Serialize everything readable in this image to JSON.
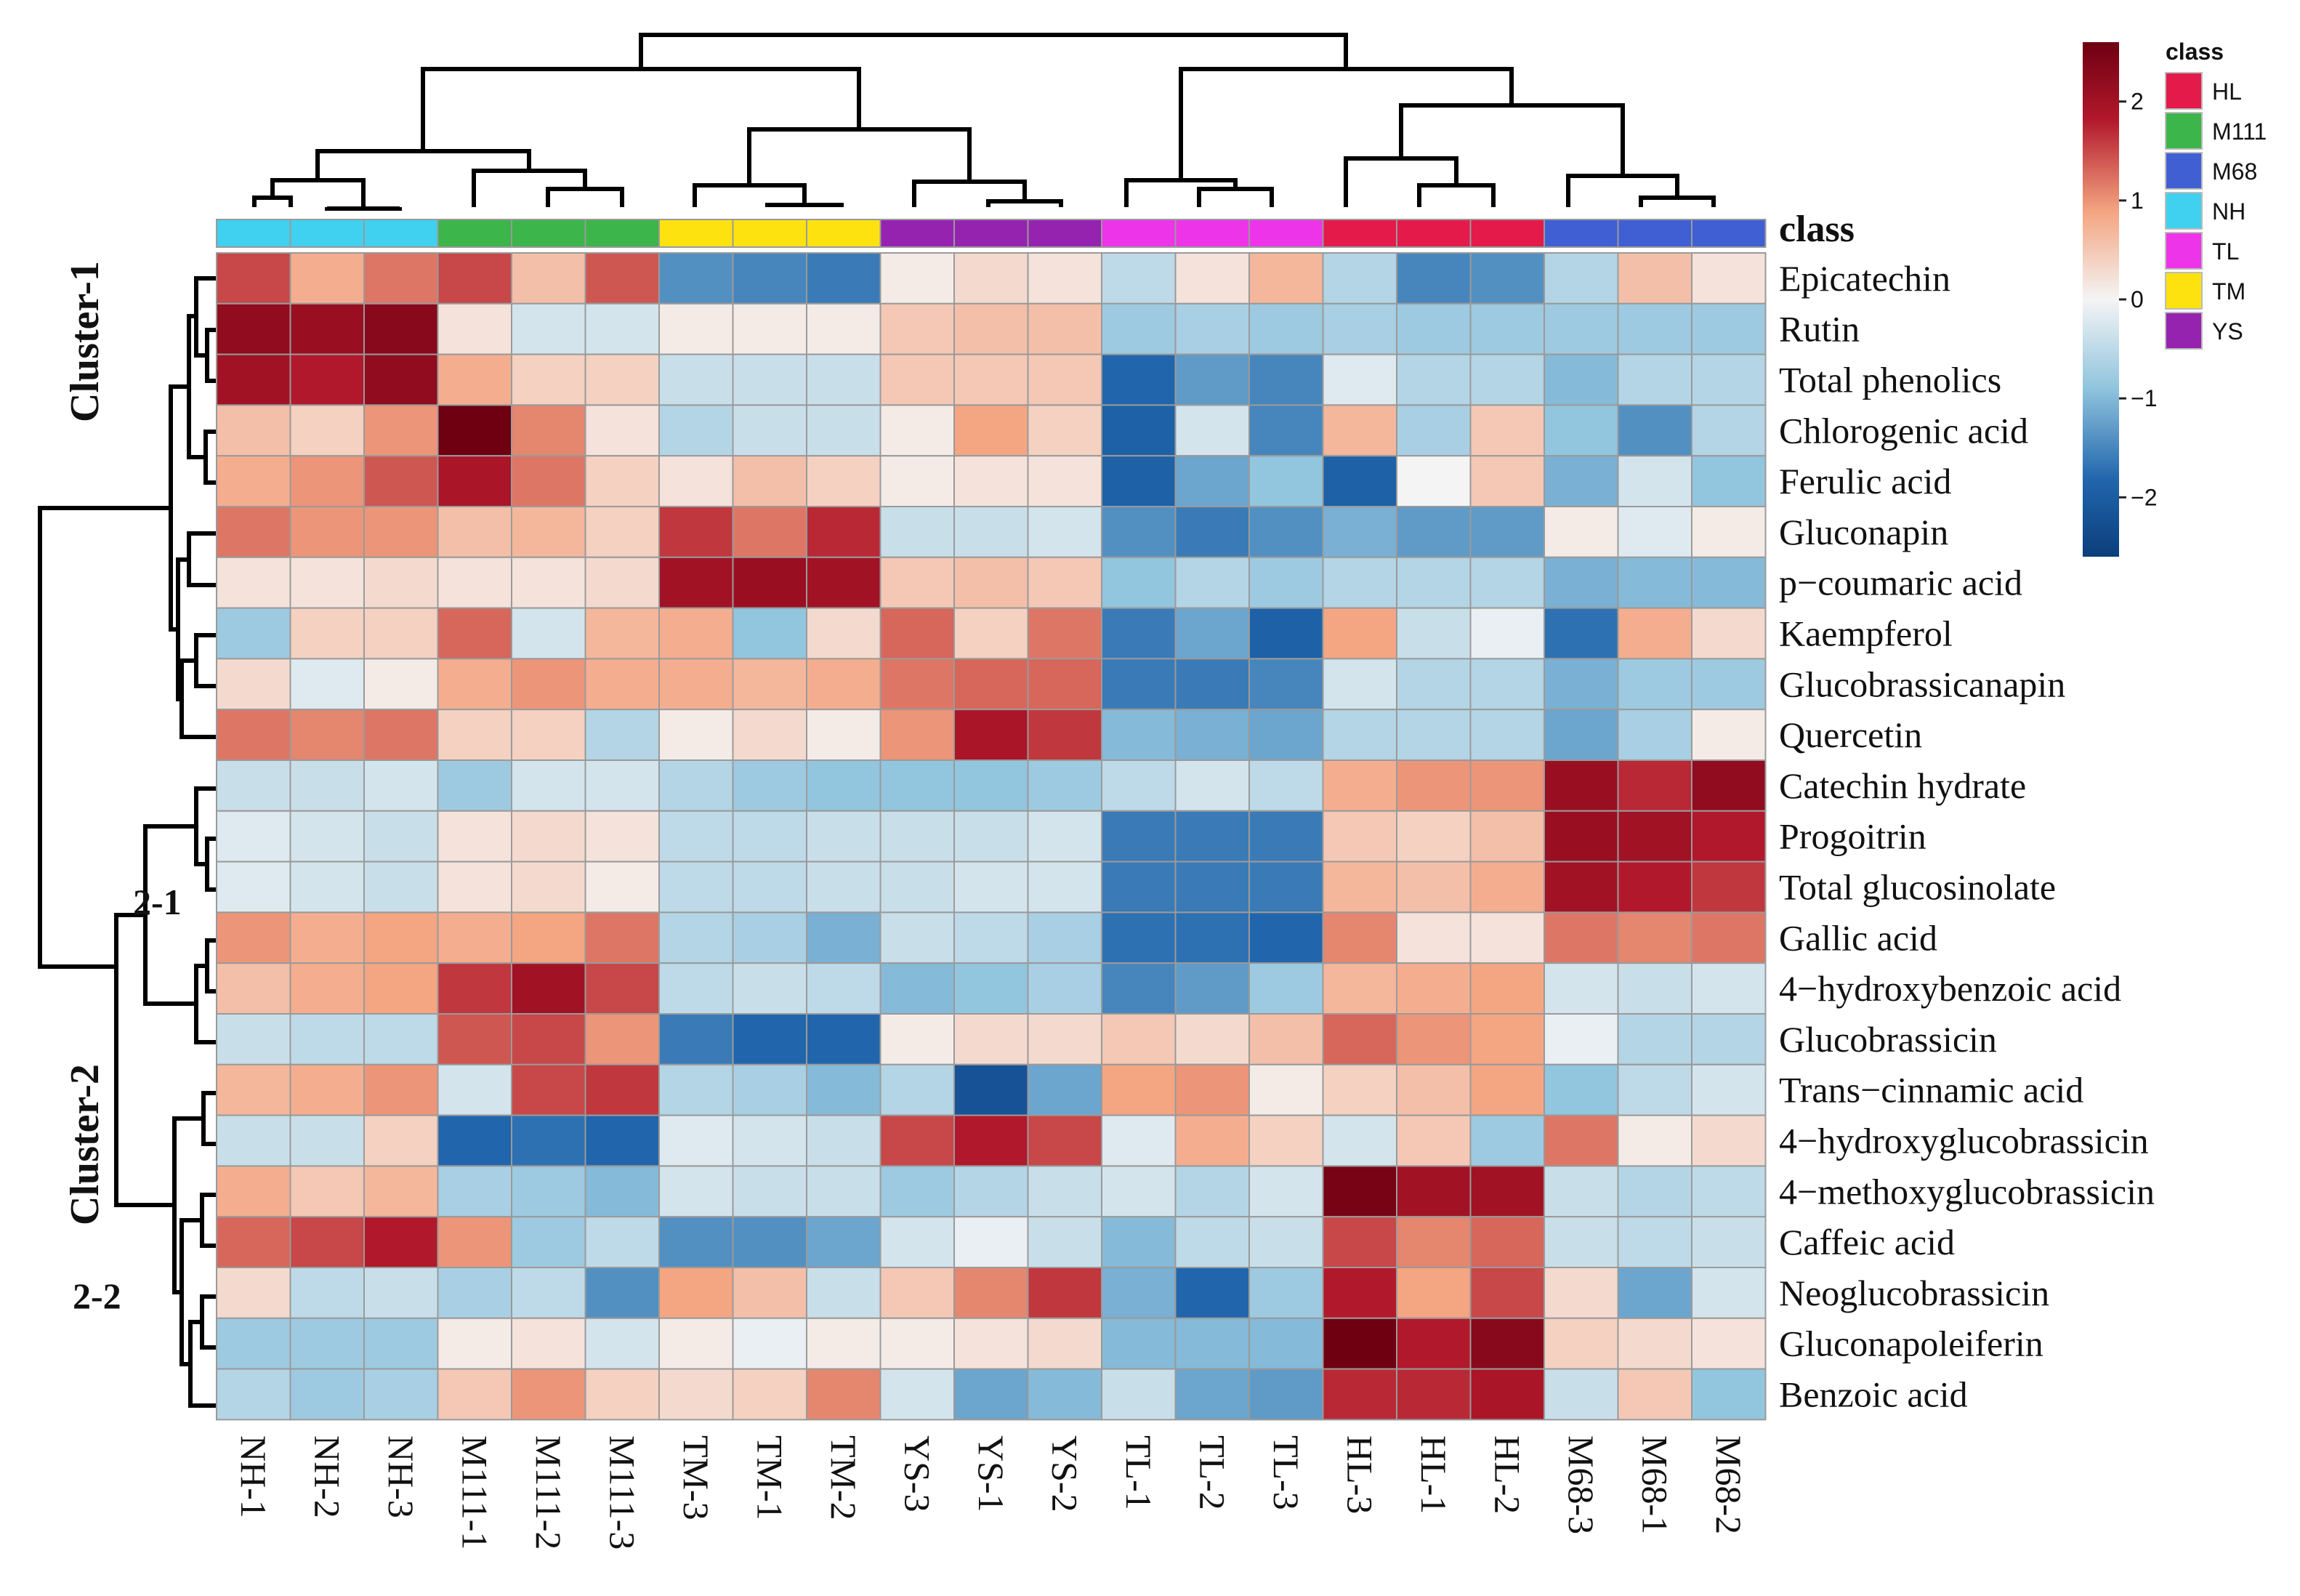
{
  "chart_data": {
    "type": "heatmap",
    "title": "",
    "class_axis_label": "class",
    "columns": [
      "NH-1",
      "NH-2",
      "NH-3",
      "M111-1",
      "M111-2",
      "M111-3",
      "TM-3",
      "TM-1",
      "TM-2",
      "YS-3",
      "YS-1",
      "YS-2",
      "TL-1",
      "TL-2",
      "TL-3",
      "HL-3",
      "HL-1",
      "HL-2",
      "M68-3",
      "M68-1",
      "M68-2"
    ],
    "column_classes": [
      "NH",
      "NH",
      "NH",
      "M111",
      "M111",
      "M111",
      "TM",
      "TM",
      "TM",
      "YS",
      "YS",
      "YS",
      "TL",
      "TL",
      "TL",
      "HL",
      "HL",
      "HL",
      "M68",
      "M68",
      "M68"
    ],
    "rows": [
      "Epicatechin",
      "Rutin",
      "Total phenolics",
      "Chlorogenic acid",
      "Ferulic acid",
      "Gluconapin",
      "p−coumaric acid",
      "Kaempferol",
      "Glucobrassicanapin",
      "Quercetin",
      "Catechin hydrate",
      "Progoitrin",
      "Total glucosinolate",
      "Gallic acid",
      "4−hydroxybenzoic acid",
      "Glucobrassicin",
      "Trans−cinnamic acid",
      "4−hydroxyglucobrassicin",
      "4−methoxyglucobrassicin",
      "Caffeic acid",
      "Neoglucobrassicin",
      "Gluconapoleiferin",
      "Benzoic acid"
    ],
    "values": [
      [
        1.5,
        0.8,
        1.2,
        1.5,
        0.6,
        1.4,
        -1.4,
        -1.5,
        -1.6,
        0.1,
        0.3,
        0.2,
        -0.5,
        0.2,
        0.7,
        -0.6,
        -1.5,
        -1.4,
        -0.6,
        0.6,
        0.2
      ],
      [
        2.2,
        2.1,
        2.3,
        0.2,
        -0.3,
        -0.3,
        0.1,
        0.1,
        0.1,
        0.5,
        0.6,
        0.6,
        -0.8,
        -0.7,
        -0.8,
        -0.7,
        -0.8,
        -0.8,
        -0.8,
        -0.8,
        -0.8
      ],
      [
        2.0,
        1.8,
        2.2,
        0.8,
        0.4,
        0.4,
        -0.4,
        -0.4,
        -0.4,
        0.5,
        0.5,
        0.5,
        -1.8,
        -1.3,
        -1.5,
        -0.2,
        -0.6,
        -0.6,
        -1.0,
        -0.6,
        -0.6
      ],
      [
        0.6,
        0.4,
        1.0,
        2.6,
        1.1,
        0.2,
        -0.6,
        -0.4,
        -0.4,
        0.1,
        0.9,
        0.4,
        -1.9,
        -0.3,
        -1.5,
        0.7,
        -0.7,
        0.5,
        -0.9,
        -1.4,
        -0.6
      ],
      [
        0.8,
        1.0,
        1.4,
        1.9,
        1.2,
        0.4,
        0.2,
        0.6,
        0.4,
        0.1,
        0.2,
        0.2,
        -1.9,
        -1.2,
        -0.9,
        -1.9,
        0.0,
        0.5,
        -1.1,
        -0.3,
        -0.9
      ],
      [
        1.2,
        1.0,
        1.0,
        0.6,
        0.7,
        0.4,
        1.6,
        1.2,
        1.7,
        -0.4,
        -0.4,
        -0.3,
        -1.4,
        -1.6,
        -1.4,
        -1.1,
        -1.3,
        -1.3,
        0.1,
        -0.2,
        0.1
      ],
      [
        0.2,
        0.2,
        0.3,
        0.2,
        0.2,
        0.3,
        2.0,
        2.1,
        2.0,
        0.5,
        0.6,
        0.5,
        -0.9,
        -0.6,
        -0.8,
        -0.6,
        -0.6,
        -0.6,
        -1.1,
        -1.0,
        -1.0
      ],
      [
        -0.8,
        0.4,
        0.4,
        1.3,
        -0.3,
        0.7,
        0.8,
        -0.9,
        0.3,
        1.3,
        0.4,
        1.2,
        -1.6,
        -1.2,
        -1.9,
        0.9,
        -0.4,
        -0.1,
        -1.7,
        0.8,
        0.3
      ],
      [
        0.3,
        -0.2,
        0.1,
        0.8,
        1.0,
        0.8,
        0.8,
        0.7,
        0.8,
        1.2,
        1.3,
        1.3,
        -1.6,
        -1.6,
        -1.5,
        -0.3,
        -0.6,
        -0.6,
        -1.1,
        -0.8,
        -0.8
      ],
      [
        1.2,
        1.1,
        1.2,
        0.4,
        0.4,
        -0.6,
        0.1,
        0.3,
        0.1,
        1.0,
        1.9,
        1.6,
        -1.0,
        -1.1,
        -1.2,
        -0.6,
        -0.6,
        -0.6,
        -1.2,
        -0.7,
        0.1
      ],
      [
        -0.4,
        -0.4,
        -0.3,
        -0.8,
        -0.3,
        -0.3,
        -0.6,
        -0.8,
        -0.9,
        -0.9,
        -0.9,
        -0.8,
        -0.5,
        -0.3,
        -0.5,
        0.8,
        1.0,
        1.0,
        2.1,
        1.7,
        2.2
      ],
      [
        -0.2,
        -0.3,
        -0.4,
        0.2,
        0.3,
        0.2,
        -0.5,
        -0.5,
        -0.4,
        -0.4,
        -0.4,
        -0.3,
        -1.6,
        -1.6,
        -1.6,
        0.5,
        0.4,
        0.6,
        2.1,
        2.0,
        1.8
      ],
      [
        -0.2,
        -0.3,
        -0.4,
        0.2,
        0.3,
        0.1,
        -0.5,
        -0.5,
        -0.4,
        -0.4,
        -0.3,
        -0.3,
        -1.6,
        -1.6,
        -1.6,
        0.7,
        0.6,
        0.8,
        2.0,
        1.8,
        1.6
      ],
      [
        1.0,
        0.8,
        0.9,
        0.8,
        0.9,
        1.2,
        -0.6,
        -0.7,
        -1.1,
        -0.4,
        -0.5,
        -0.7,
        -1.7,
        -1.7,
        -1.8,
        1.1,
        0.2,
        0.2,
        1.2,
        1.1,
        1.2
      ],
      [
        0.6,
        0.8,
        0.9,
        1.6,
        2.0,
        1.5,
        -0.5,
        -0.4,
        -0.5,
        -1.0,
        -0.9,
        -0.7,
        -1.5,
        -1.3,
        -0.8,
        0.7,
        0.8,
        0.9,
        -0.3,
        -0.4,
        -0.3
      ],
      [
        -0.4,
        -0.5,
        -0.5,
        1.4,
        1.5,
        1.0,
        -1.6,
        -1.8,
        -1.8,
        0.1,
        0.3,
        0.3,
        0.5,
        0.3,
        0.6,
        1.3,
        1.0,
        0.9,
        -0.1,
        -0.6,
        -0.6
      ],
      [
        0.7,
        0.8,
        1.0,
        -0.3,
        1.5,
        1.6,
        -0.6,
        -0.7,
        -1.0,
        -0.6,
        -2.2,
        -1.2,
        0.9,
        1.0,
        0.1,
        0.4,
        0.6,
        0.9,
        -0.9,
        -0.5,
        -0.3
      ],
      [
        -0.4,
        -0.4,
        0.4,
        -1.8,
        -1.7,
        -1.8,
        -0.2,
        -0.3,
        -0.4,
        1.5,
        1.8,
        1.5,
        -0.2,
        0.8,
        0.4,
        -0.3,
        0.5,
        -0.8,
        1.2,
        0.1,
        0.3
      ],
      [
        0.8,
        0.5,
        0.7,
        -0.7,
        -0.8,
        -1.0,
        -0.3,
        -0.4,
        -0.4,
        -0.8,
        -0.6,
        -0.4,
        -0.3,
        -0.6,
        -0.3,
        2.5,
        2.0,
        2.0,
        -0.4,
        -0.6,
        -0.5
      ],
      [
        1.3,
        1.5,
        1.8,
        1.0,
        -0.8,
        -0.5,
        -1.4,
        -1.4,
        -1.2,
        -0.3,
        -0.1,
        -0.4,
        -1.0,
        -0.5,
        -0.4,
        1.5,
        1.1,
        1.3,
        -0.4,
        -0.5,
        -0.4
      ],
      [
        0.3,
        -0.5,
        -0.4,
        -0.7,
        -0.5,
        -1.4,
        0.9,
        0.6,
        -0.4,
        0.5,
        1.1,
        1.6,
        -1.1,
        -1.8,
        -0.8,
        1.8,
        0.9,
        1.5,
        0.3,
        -1.2,
        -0.3
      ],
      [
        -0.8,
        -0.8,
        -0.8,
        0.1,
        0.2,
        -0.3,
        0.1,
        -0.1,
        0.1,
        0.1,
        0.2,
        0.3,
        -1.0,
        -1.0,
        -1.0,
        2.6,
        1.8,
        2.3,
        0.4,
        0.3,
        0.2
      ],
      [
        -0.6,
        -0.8,
        -0.7,
        0.5,
        1.0,
        0.4,
        0.3,
        0.4,
        1.1,
        -0.3,
        -1.2,
        -1.0,
        -0.4,
        -1.2,
        -1.3,
        1.7,
        1.7,
        1.9,
        -0.4,
        0.5,
        -0.9
      ]
    ],
    "color_scale": {
      "min": -2.6,
      "max": 2.6,
      "low_color": "#0b3e7d",
      "mid_color": "#f4f4f4",
      "high_color": "#6e0011",
      "ticks": [
        2,
        1,
        0,
        -1,
        -2
      ],
      "tick_labels": [
        "2",
        "1",
        "0",
        "−1",
        "−2"
      ]
    },
    "class_legend": {
      "title": "class",
      "entries": [
        {
          "name": "HL",
          "color": "#e31a4a"
        },
        {
          "name": "M111",
          "color": "#3cb54a"
        },
        {
          "name": "M68",
          "color": "#3f5fd3"
        },
        {
          "name": "NH",
          "color": "#40d0f0"
        },
        {
          "name": "TL",
          "color": "#ee34e8"
        },
        {
          "name": "TM",
          "color": "#fee210"
        },
        {
          "name": "YS",
          "color": "#9523b0"
        }
      ]
    },
    "cluster_labels": [
      "Cluster-1",
      "Cluster-2",
      "2-1",
      "2-2"
    ],
    "row_groups": {
      "Cluster-1": [
        "Epicatechin",
        "Rutin",
        "Total phenolics",
        "Chlorogenic acid",
        "Ferulic acid",
        "Gluconapin",
        "p−coumaric acid",
        "Kaempferol",
        "Glucobrassicanapin",
        "Quercetin"
      ],
      "Cluster-2": [
        "Catechin hydrate",
        "Progoitrin",
        "Total glucosinolate",
        "Gallic acid",
        "4−hydroxybenzoic acid",
        "Glucobrassicin",
        "Trans−cinnamic acid",
        "4−hydroxyglucobrassicin",
        "4−methoxyglucobrassicin",
        "Caffeic acid",
        "Neoglucobrassicin",
        "Gluconapoleiferin",
        "Benzoic acid"
      ]
    }
  }
}
